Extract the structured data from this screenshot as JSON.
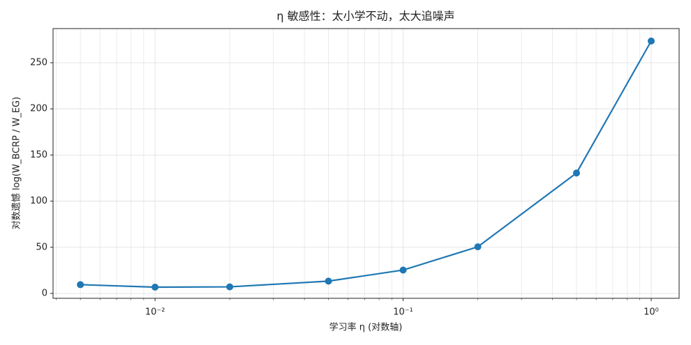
{
  "chart_data": {
    "type": "line",
    "title": "η 敏感性：太小学不动，太大追噪声",
    "xlabel": "学习率 η (对数轴)",
    "ylabel": "对数遗憾 log(W_BCRP / W_EG)",
    "x": [
      0.005,
      0.01,
      0.02,
      0.05,
      0.1,
      0.2,
      0.5,
      1.0
    ],
    "series": [
      {
        "color": "#1f77b4",
        "values": [
          9.5,
          6.8,
          7.1,
          13.3,
          25.3,
          50.5,
          130.5,
          273.5
        ]
      }
    ],
    "xscale": "log",
    "xlim": [
      0.00388,
      1.296
    ],
    "ylim": [
      -5.3,
      287
    ],
    "xticks": [
      {
        "value": 0.01,
        "label": "10⁻²"
      },
      {
        "value": 0.1,
        "label": "10⁻¹"
      },
      {
        "value": 1,
        "label": "10⁰"
      }
    ],
    "yticks": [
      0,
      50,
      100,
      150,
      200,
      250
    ],
    "grid": true
  }
}
